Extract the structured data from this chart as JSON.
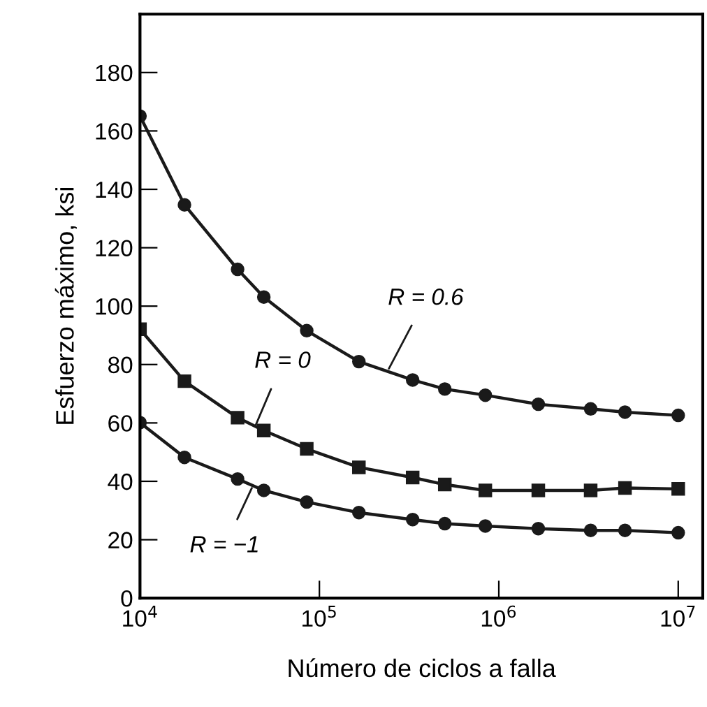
{
  "chart_data": {
    "type": "line",
    "xlabel": "Número de ciclos a falla",
    "ylabel": "Esfuerzo máximo, ksi",
    "log": "x",
    "xlim": [
      10000,
      13700000
    ],
    "ylim": [
      0,
      200
    ],
    "xticks": [
      {
        "value": 10000,
        "label": "10$^{4}$"
      },
      {
        "value": 100000,
        "label": "10$^{5}$"
      },
      {
        "value": 1000000,
        "label": "10$^{6}$"
      },
      {
        "value": 10000000,
        "label": "10$^{7}$"
      }
    ],
    "yticks": [
      0,
      20,
      40,
      60,
      80,
      100,
      120,
      140,
      160,
      180
    ],
    "grid": false,
    "legend": false,
    "x": [
      10000,
      17700,
      35000,
      49000,
      85000,
      166000,
      331000,
      500000,
      841000,
      1660000,
      3250000,
      5050000,
      10000000
    ],
    "series": [
      {
        "color": "#1a1a1a",
        "marker": "circle",
        "values": [
          165.1,
          134.7,
          112.6,
          103.1,
          91.6,
          81.0,
          74.7,
          71.6,
          69.5,
          66.4,
          64.8,
          63.7,
          62.6
        ]
      },
      {
        "color": "#1a1a1a",
        "marker": "square",
        "values": [
          92.1,
          74.3,
          61.8,
          57.4,
          51.1,
          44.8,
          41.3,
          38.9,
          36.9,
          36.9,
          36.9,
          37.7,
          37.4
        ]
      },
      {
        "color": "#1a1a1a",
        "marker": "circle",
        "values": [
          60.1,
          48.2,
          40.8,
          36.9,
          32.9,
          29.3,
          26.9,
          25.5,
          24.7,
          23.8,
          23.2,
          23.2,
          22.4
        ]
      }
    ],
    "annotations": [
      {
        "text": "R = 0.6",
        "x": 244000,
        "y": 78.6
      },
      {
        "text": "R = 0",
        "x": 44000,
        "y": 59
      },
      {
        "text": "R = −1",
        "x": 42000,
        "y": 37.7
      }
    ]
  }
}
